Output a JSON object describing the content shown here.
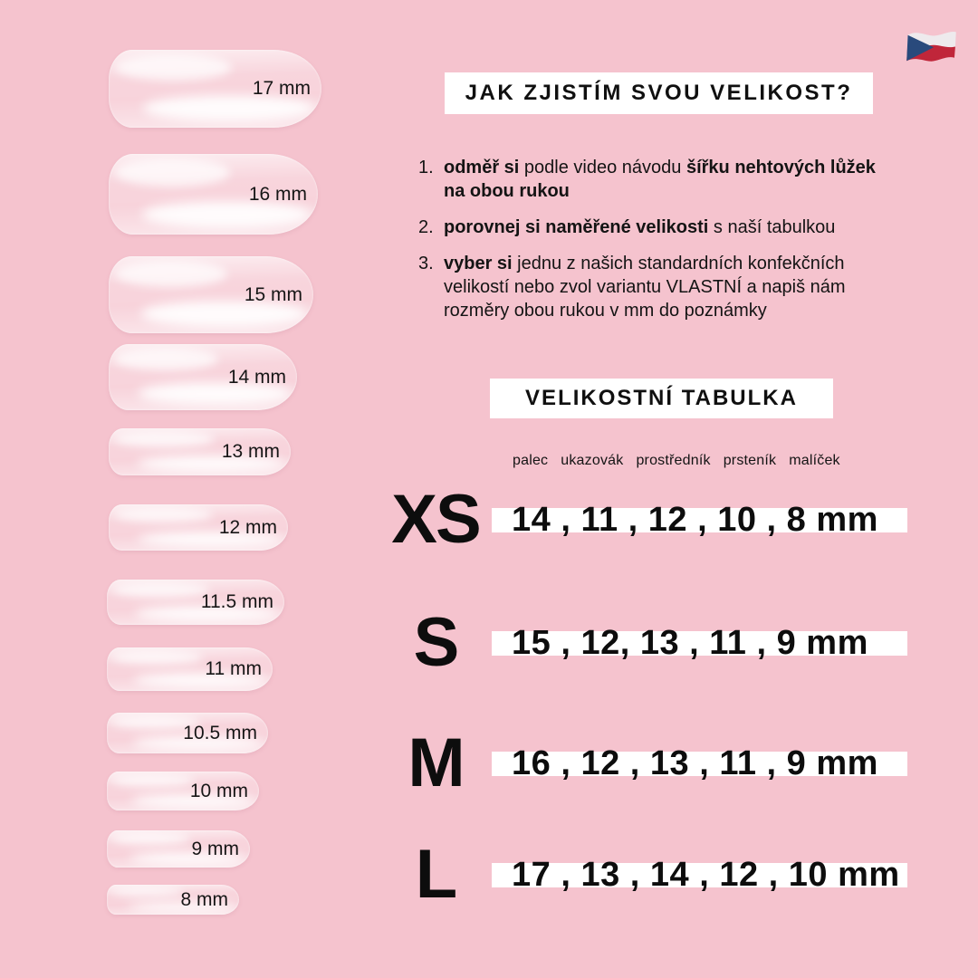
{
  "canvas": {
    "background": "#F5C3CE"
  },
  "flag": {
    "name": "czech-flag",
    "white": "#EEEAED",
    "red": "#C0263A",
    "blue": "#294A7C"
  },
  "title": {
    "text": "JAK ZJISTÍM SVOU VELIKOST?"
  },
  "instructions": {
    "items": [
      {
        "number": "1.",
        "segments": [
          {
            "text": "odměř si ",
            "bold": true
          },
          {
            "text": "podle video návodu ",
            "bold": false
          },
          {
            "text": "šířku nehtových lůžek",
            "bold": true
          },
          {
            "break": true
          },
          {
            "text": "na obou rukou",
            "bold": true
          }
        ]
      },
      {
        "number": "2.",
        "segments": [
          {
            "text": "porovnej si naměřené velikosti",
            "bold": true
          },
          {
            "text": " s naší tabulkou",
            "bold": false
          }
        ]
      },
      {
        "number": "3.",
        "segments": [
          {
            "text": "vyber si ",
            "bold": true
          },
          {
            "text": "jednu z našich standardních konfekčních",
            "bold": false
          },
          {
            "break": true
          },
          {
            "text": "velikostí nebo zvol variantu VLASTNÍ a napiš nám",
            "bold": false
          },
          {
            "break": true
          },
          {
            "text": "rozměry obou rukou v mm do poznámky",
            "bold": false
          }
        ]
      }
    ]
  },
  "size_table": {
    "heading": "VELIKOSTNÍ TABULKA",
    "columns": [
      "palec",
      "ukazovák",
      "prostředník",
      "prsteník",
      "malíček"
    ],
    "rows": [
      {
        "size": "XS",
        "values": "14 , 11 , 12 , 10 , 8 mm"
      },
      {
        "size": "S",
        "values": "15 , 12, 13 , 11 , 9 mm"
      },
      {
        "size": "M",
        "values": "16 , 12 , 13 , 11 , 9 mm"
      },
      {
        "size": "L",
        "values": "17 , 13 , 14 , 12 , 10 mm"
      }
    ]
  },
  "nails": [
    {
      "label": "17 mm"
    },
    {
      "label": "16 mm"
    },
    {
      "label": "15 mm"
    },
    {
      "label": "14 mm"
    },
    {
      "label": "13 mm"
    },
    {
      "label": "12 mm"
    },
    {
      "label": "11.5 mm"
    },
    {
      "label": "11 mm"
    },
    {
      "label": "10.5 mm"
    },
    {
      "label": "10 mm"
    },
    {
      "label": "9 mm"
    },
    {
      "label": "8 mm"
    }
  ]
}
